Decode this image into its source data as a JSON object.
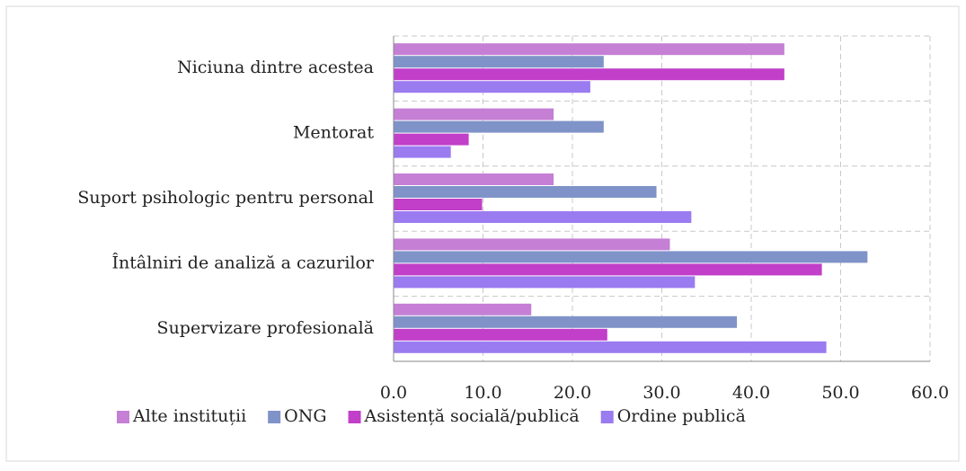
{
  "chart_data": {
    "type": "hbar",
    "categories": [
      "Niciuna dintre acestea",
      "Mentorat",
      "Suport psihologic pentru personal",
      "Întâlniri de analiză a cazurilor",
      "Supervizare profesională"
    ],
    "series": [
      {
        "name": "Alte instituții",
        "color": "#c57fd5",
        "values": [
          43.7,
          17.9,
          17.9,
          30.9,
          15.4
        ]
      },
      {
        "name": "ONG",
        "color": "#7f93c8",
        "values": [
          23.5,
          23.5,
          29.4,
          53.0,
          38.4
        ]
      },
      {
        "name": "Asistență socială/publică",
        "color": "#c13fc9",
        "values": [
          43.7,
          8.4,
          9.9,
          47.9,
          23.9
        ]
      },
      {
        "name": "Ordine publică",
        "color": "#9a7bf0",
        "values": [
          22.0,
          6.4,
          33.3,
          33.7,
          48.4
        ]
      }
    ],
    "xlim": [
      0,
      60
    ],
    "xticks": [
      {
        "value": 0,
        "label": "0.0"
      },
      {
        "value": 10,
        "label": "10.0"
      },
      {
        "value": 20,
        "label": "20.0"
      },
      {
        "value": 30,
        "label": "30.0"
      },
      {
        "value": 40,
        "label": "40.0"
      },
      {
        "value": 50,
        "label": "50.0"
      },
      {
        "value": 60,
        "label": "60.0"
      }
    ],
    "grid": true,
    "legend": "bottom"
  }
}
